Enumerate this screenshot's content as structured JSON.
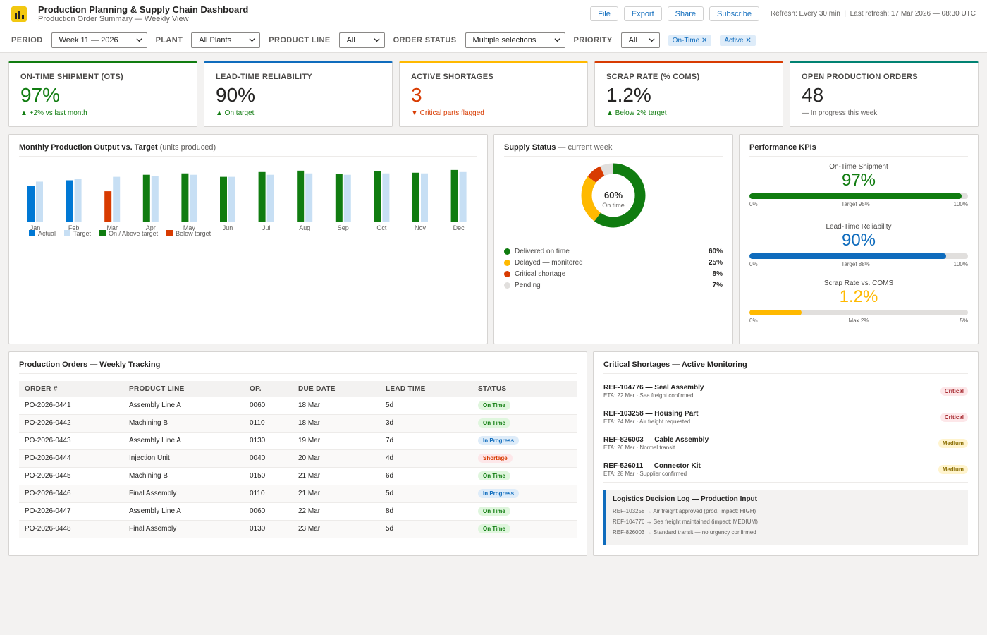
{
  "header": {
    "title": "Production Planning & Supply Chain Dashboard",
    "subtitle": "Production Order Summary — Weekly View",
    "buttons": [
      "File",
      "Export",
      "Share",
      "Subscribe"
    ],
    "refresh": "Refresh: Every 30 min  |  Last refresh: 17 Mar 2026 — 08:30 UTC"
  },
  "filters": {
    "period_label": "PERIOD",
    "period_value": "Week 11 — 2026",
    "plant_label": "PLANT",
    "plant_value": "All Plants",
    "product_line_label": "PRODUCT LINE",
    "product_line_value": "All",
    "order_status_label": "ORDER STATUS",
    "order_status_value": "Multiple selections",
    "priority_label": "PRIORITY",
    "priority_value": "All",
    "chips": [
      "On-Time ✕",
      "Active ✕"
    ]
  },
  "kpis": [
    {
      "label": "ON-TIME SHIPMENT (OTS)",
      "value": "97%",
      "delta": "▲ +2% vs last month",
      "accent": "#107c10",
      "value_color": "#107c10",
      "delta_color": "#107c10"
    },
    {
      "label": "LEAD-TIME RELIABILITY",
      "value": "90%",
      "delta": "▲ On target",
      "accent": "#0f6cbd",
      "value_color": "#252423",
      "delta_color": "#107c10"
    },
    {
      "label": "ACTIVE SHORTAGES",
      "value": "3",
      "delta": "▼ Critical parts flagged",
      "accent": "#ffb900",
      "value_color": "#d83b01",
      "delta_color": "#d83b01"
    },
    {
      "label": "SCRAP RATE (% COMS)",
      "value": "1.2%",
      "delta": "▲ Below 2% target",
      "accent": "#d83b01",
      "value_color": "#252423",
      "delta_color": "#107c10"
    },
    {
      "label": "OPEN PRODUCTION ORDERS",
      "value": "48",
      "delta": "— In progress this week",
      "accent": "#008272",
      "value_color": "#252423",
      "delta_color": "#605e5c"
    }
  ],
  "bar_panel": {
    "title": "Monthly Production Output vs. Target",
    "unit": "(units produced)",
    "legend": [
      "Actual",
      "Target",
      "On / Above target",
      "Below target"
    ]
  },
  "chart_data": {
    "type": "bar",
    "categories": [
      "Jan",
      "Feb",
      "Mar",
      "Apr",
      "May",
      "Jun",
      "Jul",
      "Aug",
      "Sep",
      "Oct",
      "Nov",
      "Dec"
    ],
    "series": [
      {
        "name": "Actual",
        "values": [
          52,
          60,
          44,
          68,
          70,
          65,
          72,
          74,
          69,
          73,
          71,
          75
        ],
        "colors": [
          "#0078d4",
          "#0078d4",
          "#d83b01",
          "#107c10",
          "#107c10",
          "#107c10",
          "#107c10",
          "#107c10",
          "#107c10",
          "#107c10",
          "#107c10",
          "#107c10"
        ]
      },
      {
        "name": "Target",
        "values": [
          58,
          62,
          65,
          66,
          68,
          65,
          68,
          70,
          68,
          70,
          70,
          72
        ],
        "color": "#c7dff4"
      }
    ],
    "ylim": [
      0,
      80
    ],
    "legend_position": "bottom-left",
    "grid": false
  },
  "supply": {
    "title": "Supply Status",
    "subtitle": "— current week",
    "center_value": "60%",
    "center_label": "On time",
    "segments": [
      {
        "label": "Delivered on time",
        "value": 60,
        "display": "60%",
        "color": "#107c10"
      },
      {
        "label": "Delayed — monitored",
        "value": 25,
        "display": "25%",
        "color": "#ffb900"
      },
      {
        "label": "Critical shortage",
        "value": 8,
        "display": "8%",
        "color": "#d83b01"
      },
      {
        "label": "Pending",
        "value": 7,
        "display": "7%",
        "color": "#e1dfdd"
      }
    ]
  },
  "performance": {
    "title": "Performance KPIs",
    "items": [
      {
        "label": "On-Time Shipment",
        "value": "97%",
        "fill": 0.97,
        "color": "#107c10",
        "min": "0%",
        "target": "Target 95%",
        "max": "100%"
      },
      {
        "label": "Lead-Time Reliability",
        "value": "90%",
        "fill": 0.9,
        "color": "#0f6cbd",
        "min": "0%",
        "target": "Target 88%",
        "max": "100%"
      },
      {
        "label": "Scrap Rate vs. COMS",
        "value": "1.2%",
        "fill": 0.24,
        "color": "#ffb900",
        "min": "0%",
        "target": "Max 2%",
        "max": "5%"
      }
    ]
  },
  "orders": {
    "title": "Production Orders — Weekly Tracking",
    "columns": [
      "ORDER #",
      "PRODUCT LINE",
      "OP.",
      "DUE DATE",
      "LEAD TIME",
      "STATUS"
    ],
    "rows": [
      {
        "order": "PO-2026-0441",
        "line": "Assembly Line A",
        "op": "0060",
        "due": "18 Mar",
        "lead": "5d",
        "status": "On Time"
      },
      {
        "order": "PO-2026-0442",
        "line": "Machining B",
        "op": "0110",
        "due": "18 Mar",
        "lead": "3d",
        "status": "On Time"
      },
      {
        "order": "PO-2026-0443",
        "line": "Assembly Line A",
        "op": "0130",
        "due": "19 Mar",
        "lead": "7d",
        "status": "In Progress"
      },
      {
        "order": "PO-2026-0444",
        "line": "Injection Unit",
        "op": "0040",
        "due": "20 Mar",
        "lead": "4d",
        "status": "Shortage"
      },
      {
        "order": "PO-2026-0445",
        "line": "Machining B",
        "op": "0150",
        "due": "21 Mar",
        "lead": "6d",
        "status": "On Time"
      },
      {
        "order": "PO-2026-0446",
        "line": "Final Assembly",
        "op": "0110",
        "due": "21 Mar",
        "lead": "5d",
        "status": "In Progress"
      },
      {
        "order": "PO-2026-0447",
        "line": "Assembly Line A",
        "op": "0060",
        "due": "22 Mar",
        "lead": "8d",
        "status": "On Time"
      },
      {
        "order": "PO-2026-0448",
        "line": "Final Assembly",
        "op": "0130",
        "due": "23 Mar",
        "lead": "5d",
        "status": "On Time"
      }
    ]
  },
  "shortages": {
    "title": "Critical Shortages — Active Monitoring",
    "items": [
      {
        "title": "REF-104776 — Seal Assembly",
        "eta": "ETA: 22 Mar · Sea freight confirmed",
        "severity": "Critical"
      },
      {
        "title": "REF-103258 — Housing Part",
        "eta": "ETA: 24 Mar · Air freight requested",
        "severity": "Critical"
      },
      {
        "title": "REF-826003 — Cable Assembly",
        "eta": "ETA: 26 Mar · Normal transit",
        "severity": "Medium"
      },
      {
        "title": "REF-526011 — Connector Kit",
        "eta": "ETA: 28 Mar · Supplier confirmed",
        "severity": "Medium"
      }
    ],
    "log_title": "Logistics Decision Log — Production Input",
    "log_lines": [
      "REF-103258 → Air freight approved (prod. impact: HIGH)",
      "REF-104776 → Sea freight maintained (impact: MEDIUM)",
      "REF-826003 → Standard transit — no urgency confirmed"
    ]
  }
}
